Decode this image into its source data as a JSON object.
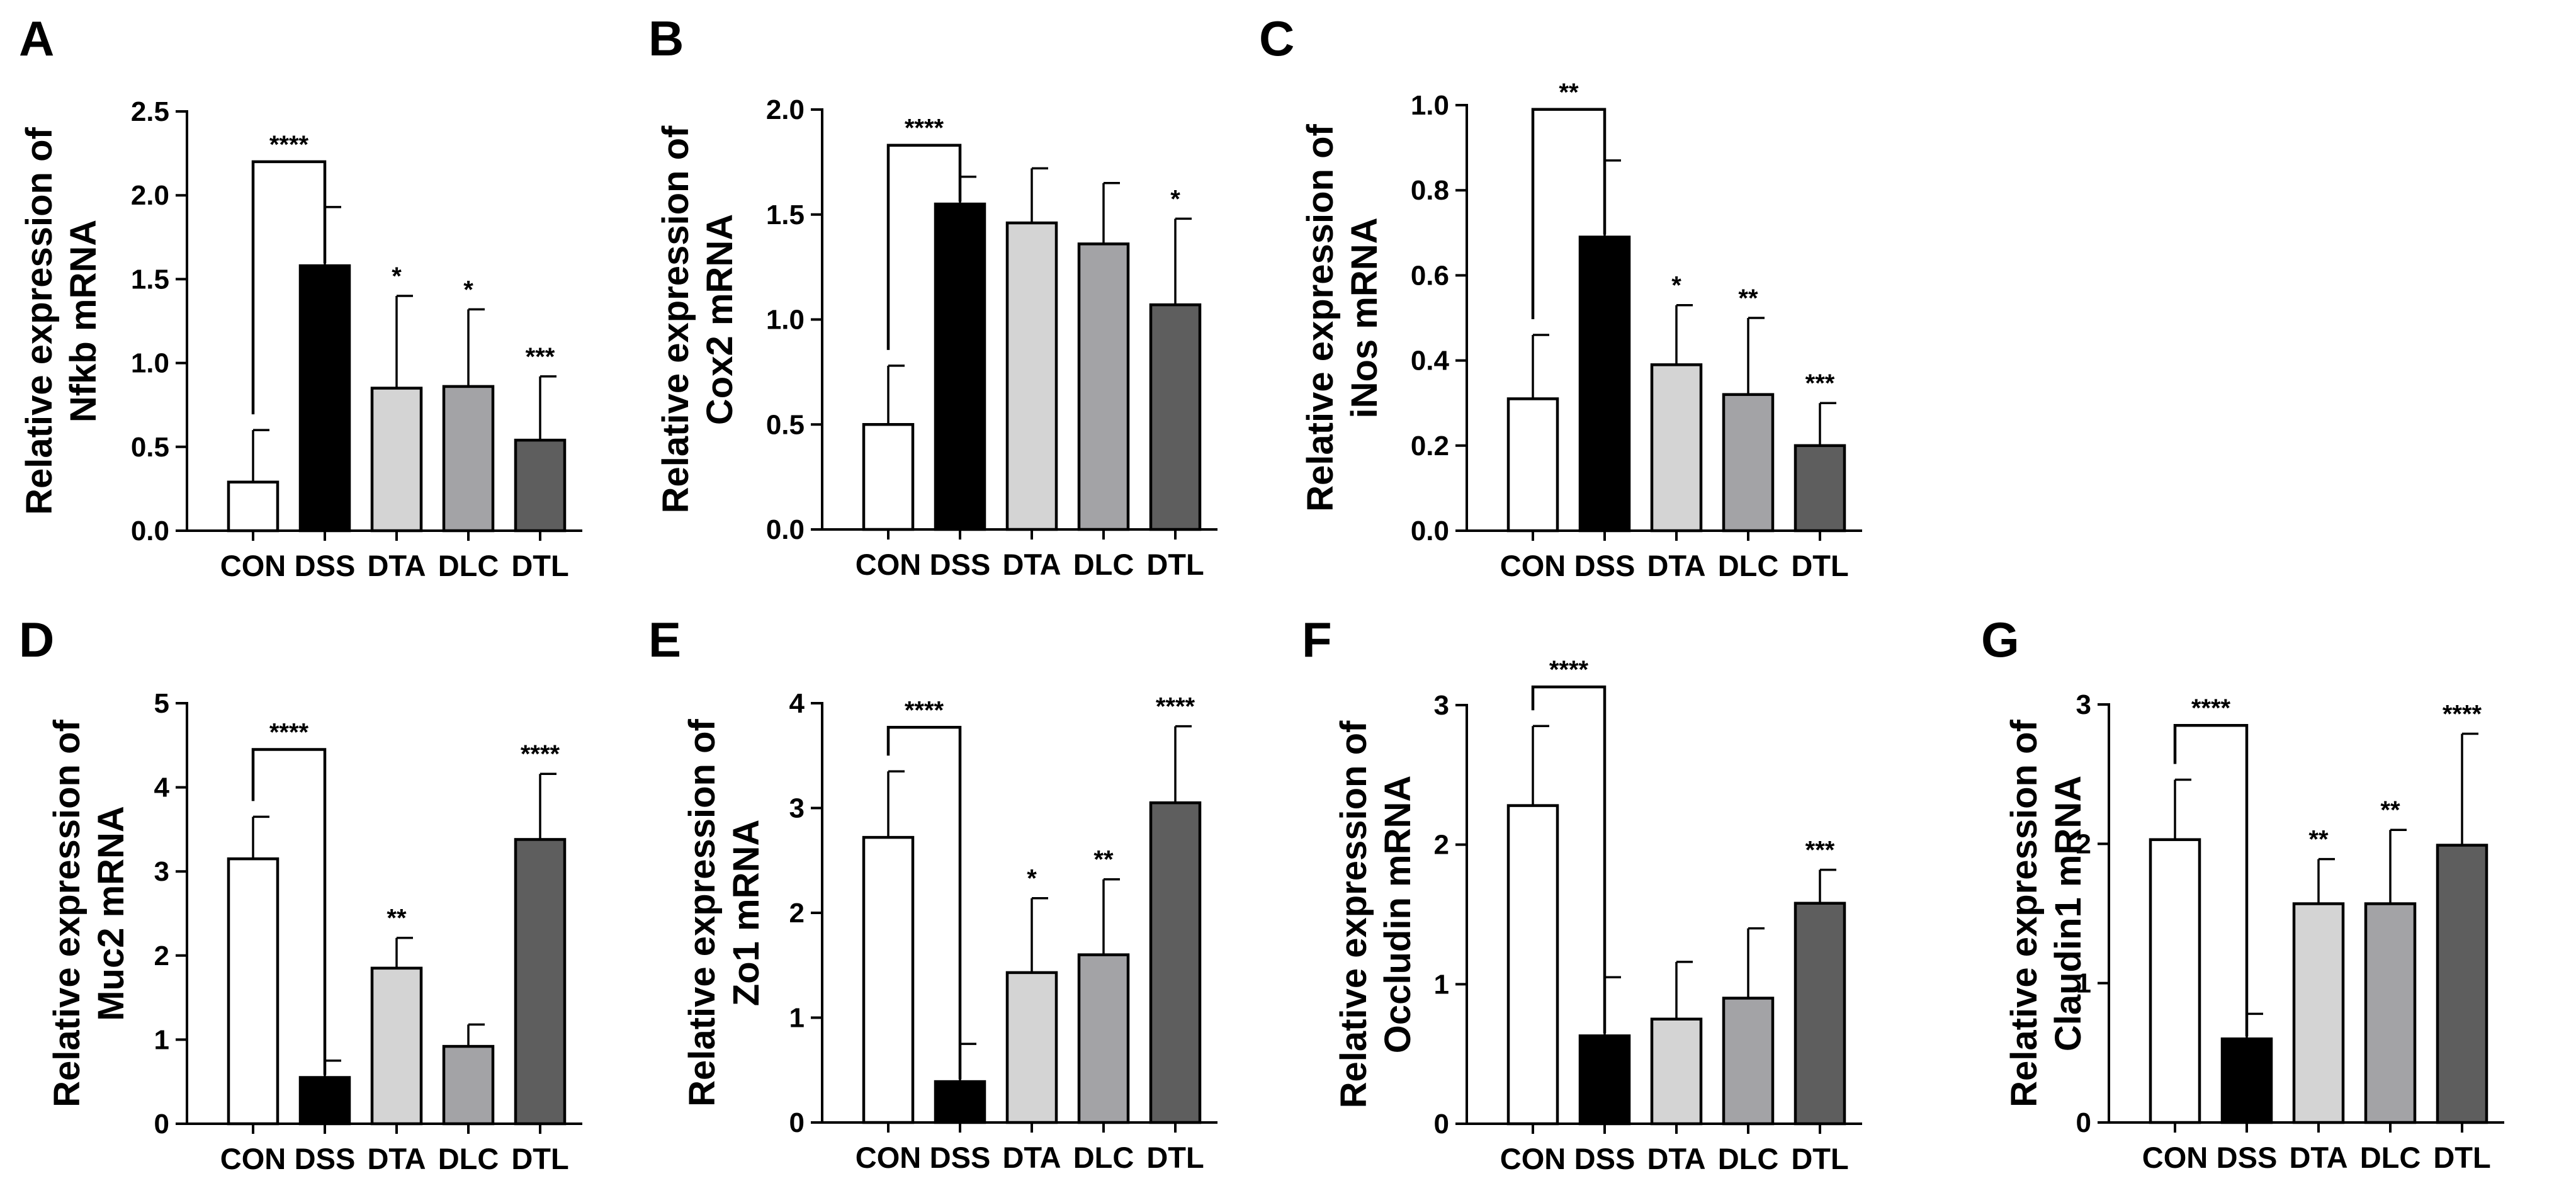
{
  "chart_data": [
    {
      "type": "bar",
      "panel": "A",
      "ylabel": [
        "Relative expression of",
        "Nfkb mRNA"
      ],
      "ylim": [
        0,
        2.5
      ],
      "yticks": [
        "0.0",
        "0.5",
        "1.0",
        "1.5",
        "2.0",
        "2.5"
      ],
      "categories": [
        "CON",
        "DSS",
        "DTA",
        "DLC",
        "DTL"
      ],
      "values": [
        0.29,
        1.58,
        0.85,
        0.86,
        0.54
      ],
      "errors": [
        0.31,
        0.35,
        0.55,
        0.46,
        0.38
      ],
      "significance": [
        "",
        "",
        "*",
        "*",
        "***"
      ],
      "bracket": {
        "from": 0,
        "to": 1,
        "label": "****",
        "y": 2.2
      }
    },
    {
      "type": "bar",
      "panel": "B",
      "ylabel": [
        "Relative expression of",
        "Cox2 mRNA"
      ],
      "ylim": [
        0,
        2.0
      ],
      "yticks": [
        "0.0",
        "0.5",
        "1.0",
        "1.5",
        "2.0"
      ],
      "categories": [
        "CON",
        "DSS",
        "DTA",
        "DLC",
        "DTL"
      ],
      "values": [
        0.5,
        1.55,
        1.46,
        1.36,
        1.07
      ],
      "errors": [
        0.28,
        0.13,
        0.26,
        0.29,
        0.41
      ],
      "significance": [
        "",
        "",
        "",
        "",
        "*"
      ],
      "bracket": {
        "from": 0,
        "to": 1,
        "label": "****",
        "y": 1.83
      }
    },
    {
      "type": "bar",
      "panel": "C",
      "ylabel": [
        "Relative expression of",
        "iNos mRNA"
      ],
      "ylim": [
        0,
        1.0
      ],
      "yticks": [
        "0.0",
        "0.2",
        "0.4",
        "0.6",
        "0.8",
        "1.0"
      ],
      "categories": [
        "CON",
        "DSS",
        "DTA",
        "DLC",
        "DTL"
      ],
      "values": [
        0.31,
        0.69,
        0.39,
        0.32,
        0.2
      ],
      "errors": [
        0.15,
        0.18,
        0.14,
        0.18,
        0.1
      ],
      "significance": [
        "",
        "",
        "*",
        "**",
        "***"
      ],
      "bracket": {
        "from": 0,
        "to": 1,
        "label": "**",
        "y": 0.99
      }
    },
    {
      "type": "bar",
      "panel": "D",
      "ylabel": [
        "Relative expression of",
        "Muc2 mRNA"
      ],
      "ylim": [
        0,
        5
      ],
      "yticks": [
        "0",
        "1",
        "2",
        "3",
        "4",
        "5"
      ],
      "categories": [
        "CON",
        "DSS",
        "DTA",
        "DLC",
        "DTL"
      ],
      "values": [
        3.15,
        0.55,
        1.85,
        0.92,
        3.38
      ],
      "errors": [
        0.5,
        0.2,
        0.36,
        0.26,
        0.78
      ],
      "significance": [
        "",
        "",
        "**",
        "",
        "****"
      ],
      "bracket": {
        "from": 0,
        "to": 1,
        "label": "****",
        "y": 4.45
      }
    },
    {
      "type": "bar",
      "panel": "E",
      "ylabel": [
        "Relative expression of",
        "Zo1 mRNA"
      ],
      "ylim": [
        0,
        4
      ],
      "yticks": [
        "0",
        "1",
        "2",
        "3",
        "4"
      ],
      "categories": [
        "CON",
        "DSS",
        "DTA",
        "DLC",
        "DTL"
      ],
      "values": [
        2.72,
        0.39,
        1.43,
        1.6,
        3.05
      ],
      "errors": [
        0.63,
        0.36,
        0.71,
        0.72,
        0.73
      ],
      "significance": [
        "",
        "",
        "*",
        "**",
        "****"
      ],
      "bracket": {
        "from": 0,
        "to": 1,
        "label": "****",
        "y": 3.77
      }
    },
    {
      "type": "bar",
      "panel": "F",
      "ylabel": [
        "Relative expression of",
        "Occludin mRNA"
      ],
      "ylim": [
        0,
        3
      ],
      "yticks": [
        "0",
        "1",
        "2",
        "3"
      ],
      "categories": [
        "CON",
        "DSS",
        "DTA",
        "DLC",
        "DTL"
      ],
      "values": [
        2.28,
        0.63,
        0.75,
        0.9,
        1.58
      ],
      "errors": [
        0.57,
        0.42,
        0.41,
        0.5,
        0.24
      ],
      "significance": [
        "",
        "",
        "",
        "",
        "***"
      ],
      "bracket": {
        "from": 0,
        "to": 1,
        "label": "****",
        "y": 3.13
      }
    },
    {
      "type": "bar",
      "panel": "G",
      "ylabel": [
        "Relative expression of",
        "Claudin1 mRNA"
      ],
      "ylim": [
        0,
        3
      ],
      "yticks": [
        "0",
        "1",
        "2",
        "3"
      ],
      "categories": [
        "CON",
        "DSS",
        "DTA",
        "DLC",
        "DTL"
      ],
      "values": [
        2.03,
        0.6,
        1.57,
        1.57,
        1.99
      ],
      "errors": [
        0.43,
        0.18,
        0.32,
        0.53,
        0.8
      ],
      "significance": [
        "",
        "",
        "**",
        "**",
        "****"
      ],
      "bracket": {
        "from": 0,
        "to": 1,
        "label": "****",
        "y": 2.85
      }
    }
  ],
  "colors": {
    "CON": "#ffffff",
    "DSS": "#000000",
    "DTA": "#d4d4d4",
    "DLC": "#a3a3a6",
    "DTL": "#5e5e5e"
  }
}
